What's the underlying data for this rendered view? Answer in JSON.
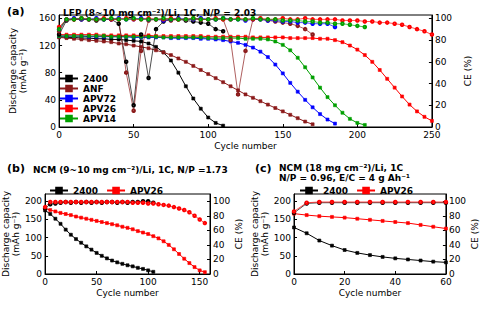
{
  "chart_data": [
    {
      "type": "line",
      "title": "(a)",
      "subtitle": "LFP (8~10 mg cm⁻²)/Li, 1C, N/P = 2.03",
      "xlabel": "Cycle number",
      "ylabel": "Discharge capacity\n(mAh g⁻¹)",
      "y2label": "CE (%)",
      "x": [
        0,
        5,
        10,
        15,
        20,
        25,
        30,
        35,
        40,
        45,
        50,
        55,
        60,
        65,
        70,
        75,
        80,
        85,
        90,
        95,
        100,
        105,
        110,
        115,
        120,
        125,
        130,
        135,
        140,
        145,
        150,
        155,
        160,
        165,
        170,
        175,
        180,
        185,
        190,
        195,
        200,
        205,
        210,
        215,
        220,
        225,
        230,
        235,
        240,
        245,
        250
      ],
      "xlim": [
        0,
        250
      ],
      "xticks": [
        0,
        50,
        100,
        150,
        200,
        250
      ],
      "ylim": [
        0,
        165
      ],
      "yticks": [
        0,
        40,
        80,
        120,
        160
      ],
      "y2lim": [
        0,
        103
      ],
      "y2ticks": [
        0,
        20,
        40,
        60,
        80,
        100
      ],
      "grid": false,
      "legend": "bottom-left",
      "series": [
        {
          "name": "2400",
          "color": "#000000",
          "marker": "square",
          "values": [
            133,
            132,
            132,
            131,
            131,
            130,
            130,
            129,
            129,
            128,
            127,
            126,
            123,
            118,
            110,
            98,
            80,
            60,
            42,
            27,
            14,
            6,
            2,
            null,
            null,
            null,
            null,
            null,
            null,
            null,
            null,
            null,
            null,
            null,
            null,
            null,
            null,
            null,
            null,
            null,
            null,
            null,
            null,
            null,
            null,
            null,
            null,
            null,
            null,
            null,
            null
          ]
        },
        {
          "name": "ANF",
          "color": "#8b1a1a",
          "marker": "square",
          "values": [
            132,
            131,
            130,
            129,
            128,
            127,
            126,
            125,
            123,
            122,
            120,
            118,
            116,
            113,
            110,
            106,
            101,
            96,
            90,
            84,
            78,
            72,
            66,
            60,
            54,
            48,
            43,
            38,
            33,
            28,
            23,
            18,
            13,
            8,
            4,
            null,
            null,
            null,
            null,
            null,
            null,
            null,
            null,
            null,
            null,
            null,
            null,
            null,
            null,
            null,
            null
          ]
        },
        {
          "name": "APV72",
          "color": "#0000ff",
          "marker": "square",
          "values": [
            134,
            134,
            134,
            134,
            133,
            133,
            133,
            133,
            133,
            133,
            132,
            132,
            132,
            132,
            132,
            131,
            131,
            131,
            131,
            130,
            130,
            129,
            128,
            126,
            124,
            121,
            117,
            111,
            103,
            92,
            79,
            65,
            52,
            40,
            29,
            19,
            11,
            5,
            null,
            null,
            null,
            null,
            null,
            null,
            null,
            null,
            null,
            null,
            null,
            null,
            null
          ]
        },
        {
          "name": "APV26",
          "color": "#ff0000",
          "marker": "square",
          "values": [
            136,
            136,
            136,
            136,
            136,
            136,
            135,
            135,
            135,
            135,
            135,
            135,
            135,
            134,
            134,
            134,
            134,
            134,
            134,
            134,
            133,
            133,
            133,
            133,
            133,
            133,
            132,
            132,
            132,
            132,
            132,
            131,
            131,
            131,
            131,
            130,
            130,
            128,
            125,
            120,
            114,
            106,
            96,
            84,
            71,
            58,
            45,
            33,
            23,
            15,
            9
          ]
        },
        {
          "name": "APV14",
          "color": "#00a000",
          "marker": "square",
          "values": [
            134,
            134,
            134,
            134,
            134,
            134,
            134,
            133,
            133,
            133,
            133,
            133,
            133,
            133,
            132,
            132,
            132,
            132,
            132,
            132,
            131,
            131,
            131,
            131,
            131,
            130,
            130,
            130,
            129,
            126,
            121,
            113,
            102,
            88,
            73,
            58,
            44,
            32,
            21,
            12,
            6,
            3,
            null,
            null,
            null,
            null,
            null,
            null,
            null,
            null,
            null
          ]
        },
        {
          "name": "2400",
          "color": "#000000",
          "marker": "circle-open",
          "axis": "y2",
          "values": [
            85,
            98,
            99,
            99,
            99,
            98,
            99,
            99,
            95,
            60,
            20,
            85,
            45,
            90,
            97,
            99,
            99,
            98,
            97,
            96,
            95,
            90,
            88,
            null,
            null,
            null,
            null,
            null,
            null,
            null,
            null,
            null,
            null,
            null,
            null,
            null,
            null,
            null,
            null,
            null,
            null,
            null,
            null,
            null,
            null,
            null,
            null,
            null,
            null,
            null,
            null
          ]
        },
        {
          "name": "ANF",
          "color": "#8b1a1a",
          "marker": "circle-open",
          "axis": "y2",
          "values": [
            88,
            99,
            99,
            99,
            99,
            99,
            99,
            99,
            99,
            50,
            15,
            70,
            98,
            99,
            99,
            98,
            99,
            99,
            99,
            99,
            99,
            99,
            99,
            80,
            30,
            70,
            99,
            99,
            98,
            97,
            96,
            95,
            93,
            90,
            85,
            null,
            null,
            null,
            null,
            null,
            null,
            null,
            null,
            null,
            null,
            null,
            null,
            null,
            null,
            null,
            null
          ]
        },
        {
          "name": "APV72",
          "color": "#0000ff",
          "marker": "circle-open",
          "axis": "y2",
          "values": [
            90,
            99,
            100,
            99,
            99,
            100,
            99,
            99,
            100,
            99,
            99,
            100,
            99,
            99,
            98,
            99,
            100,
            99,
            99,
            100,
            99,
            99,
            100,
            99,
            99,
            98,
            99,
            99,
            98,
            98,
            97,
            97,
            96,
            96,
            95,
            95,
            95,
            92,
            null,
            null,
            null,
            null,
            null,
            null,
            null,
            null,
            null,
            null,
            null,
            null,
            null
          ]
        },
        {
          "name": "APV26",
          "color": "#ff0000",
          "marker": "circle-open",
          "axis": "y2",
          "values": [
            92,
            99,
            99,
            100,
            99,
            99,
            100,
            99,
            99,
            100,
            99,
            99,
            100,
            99,
            99,
            100,
            99,
            99,
            100,
            99,
            99,
            100,
            99,
            99,
            100,
            99,
            99,
            100,
            99,
            99,
            100,
            99,
            99,
            100,
            99,
            99,
            99,
            99,
            98,
            98,
            98,
            97,
            97,
            96,
            96,
            95,
            94,
            92,
            90,
            88,
            85
          ]
        },
        {
          "name": "APV14",
          "color": "#00a000",
          "marker": "circle-open",
          "axis": "y2",
          "values": [
            90,
            99,
            99,
            100,
            99,
            99,
            99,
            100,
            99,
            99,
            100,
            99,
            99,
            99,
            100,
            99,
            99,
            99,
            100,
            99,
            99,
            99,
            100,
            99,
            99,
            99,
            100,
            99,
            99,
            99,
            98,
            98,
            98,
            97,
            97,
            96,
            96,
            95,
            95,
            94,
            93,
            92,
            null,
            null,
            null,
            null,
            null,
            null,
            null,
            null,
            null
          ]
        }
      ]
    },
    {
      "type": "line",
      "title": "(b)",
      "subtitle": "NCM (9~10 mg cm⁻²)/Li, 1C, N/P =1.73",
      "xlabel": "Cycle number",
      "ylabel": "Discharge capacity\n(mAh g⁻¹)",
      "y2label": "CE (%)",
      "x": [
        0,
        5,
        10,
        15,
        20,
        25,
        30,
        35,
        40,
        45,
        50,
        55,
        60,
        65,
        70,
        75,
        80,
        85,
        90,
        95,
        100,
        105,
        110,
        115,
        120,
        125,
        130,
        135,
        140,
        145,
        150,
        155,
        160
      ],
      "xlim": [
        0,
        160
      ],
      "xticks": [
        0,
        50,
        100,
        150
      ],
      "ylim": [
        0,
        220
      ],
      "yticks": [
        0,
        50,
        100,
        150,
        200
      ],
      "y2lim": [
        0,
        110
      ],
      "y2ticks": [
        0,
        20,
        40,
        60,
        80,
        100
      ],
      "grid": false,
      "legend": "top",
      "series": [
        {
          "name": "2400",
          "color": "#000000",
          "marker": "square",
          "values": [
            175,
            165,
            152,
            138,
            122,
            108,
            96,
            86,
            76,
            67,
            58,
            50,
            43,
            37,
            32,
            28,
            24,
            21,
            17,
            14,
            10,
            6,
            null,
            null,
            null,
            null,
            null,
            null,
            null,
            null,
            null,
            null,
            null
          ]
        },
        {
          "name": "APV26",
          "color": "#ff0000",
          "marker": "square",
          "values": [
            180,
            176,
            172,
            168,
            165,
            162,
            158,
            155,
            152,
            149,
            146,
            143,
            140,
            137,
            134,
            130,
            127,
            123,
            118,
            114,
            110,
            104,
            98,
            90,
            80,
            68,
            55,
            42,
            30,
            19,
            10,
            5,
            null
          ]
        },
        {
          "name": "2400",
          "color": "#000000",
          "marker": "circle-open",
          "axis": "y2",
          "values": [
            90,
            96,
            97,
            98,
            99,
            98,
            99,
            98,
            99,
            98,
            99,
            98,
            99,
            99,
            98,
            99,
            98,
            99,
            99,
            100,
            100,
            98,
            null,
            null,
            null,
            null,
            null,
            null,
            null,
            null,
            null,
            null,
            null
          ]
        },
        {
          "name": "APV26",
          "color": "#ff0000",
          "marker": "circle-open",
          "axis": "y2",
          "values": [
            92,
            99,
            99,
            99,
            99,
            99,
            99,
            99,
            99,
            99,
            99,
            99,
            99,
            99,
            99,
            99,
            99,
            98,
            98,
            98,
            97,
            97,
            96,
            95,
            94,
            92,
            90,
            88,
            85,
            80,
            75,
            70,
            null
          ]
        }
      ]
    },
    {
      "type": "line",
      "title": "(c)",
      "subtitle": "NCM (18 mg cm⁻²)/Li, 1C\nN/P = 0.96, E/C = 4 g Ah⁻¹",
      "xlabel": "Cycle number",
      "ylabel": "Discharge capacity\n(mAh g⁻¹)",
      "y2label": "CE (%)",
      "x": [
        0,
        5,
        10,
        15,
        20,
        25,
        30,
        35,
        40,
        45,
        50,
        55,
        60
      ],
      "xlim": [
        0,
        60
      ],
      "xticks": [
        0,
        20,
        40,
        60
      ],
      "ylim": [
        0,
        220
      ],
      "yticks": [
        0,
        50,
        100,
        150,
        200
      ],
      "y2lim": [
        0,
        110
      ],
      "y2ticks": [
        0,
        20,
        40,
        60,
        80,
        100
      ],
      "grid": false,
      "legend": "top",
      "series": [
        {
          "name": "2400",
          "color": "#000000",
          "marker": "square",
          "values": [
            128,
            112,
            92,
            78,
            66,
            58,
            52,
            47,
            43,
            40,
            37,
            34,
            32
          ]
        },
        {
          "name": "APV26",
          "color": "#ff0000",
          "marker": "square",
          "values": [
            166,
            162,
            159,
            157,
            155,
            152,
            149,
            146,
            143,
            140,
            135,
            130,
            125
          ]
        },
        {
          "name": "2400",
          "color": "#000000",
          "marker": "circle-open",
          "axis": "y2",
          "values": [
            84,
            97,
            98,
            98,
            98,
            98,
            98,
            98,
            98,
            98,
            98,
            98,
            98
          ]
        },
        {
          "name": "APV26",
          "color": "#ff0000",
          "marker": "circle-open",
          "axis": "y2",
          "values": [
            86,
            98,
            99,
            99,
            99,
            99,
            99,
            99,
            99,
            99,
            99,
            99,
            99
          ]
        }
      ]
    }
  ]
}
